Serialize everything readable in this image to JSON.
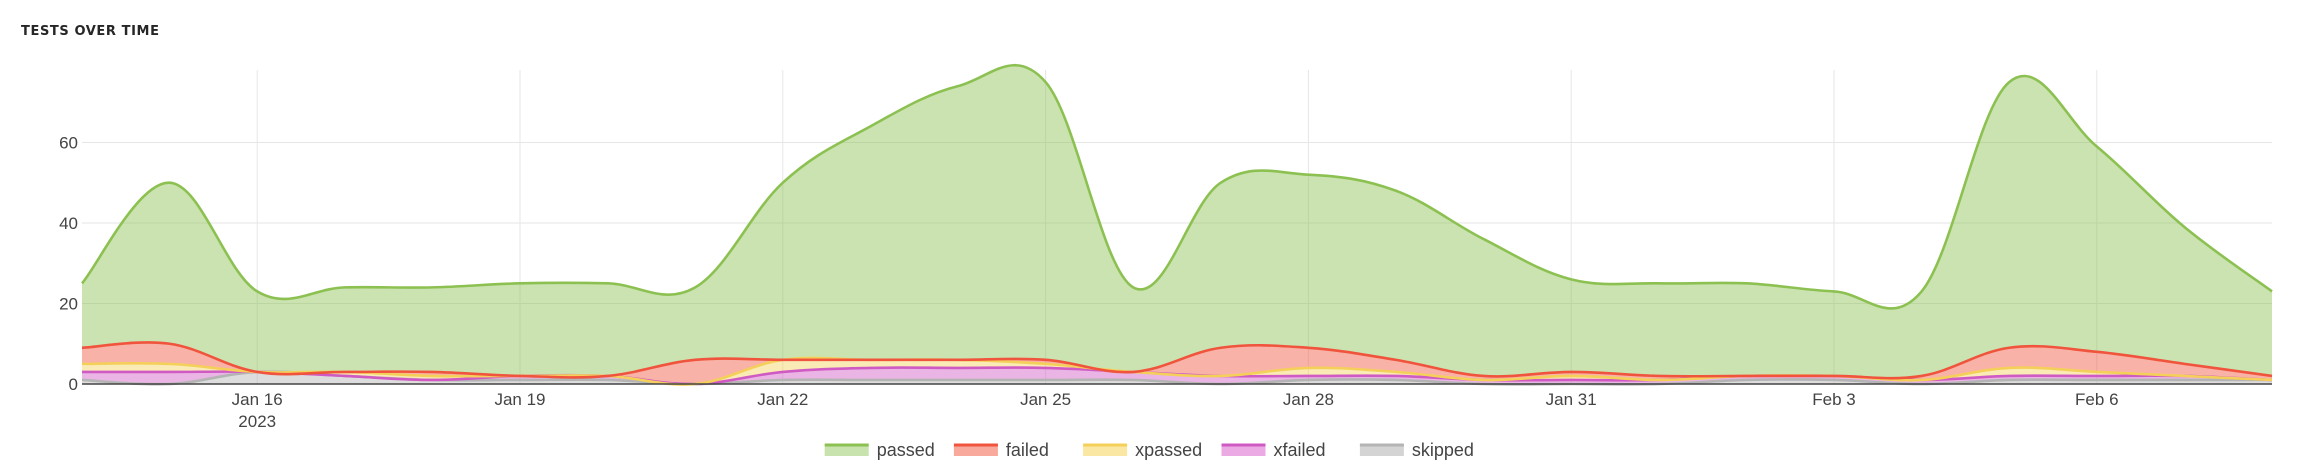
{
  "title": "TESTS OVER TIME",
  "chart_data": {
    "type": "area",
    "stacked": true,
    "x_dates": [
      "2023-01-14",
      "2023-01-15",
      "2023-01-16",
      "2023-01-17",
      "2023-01-18",
      "2023-01-19",
      "2023-01-20",
      "2023-01-21",
      "2023-01-22",
      "2023-01-23",
      "2023-01-24",
      "2023-01-25",
      "2023-01-26",
      "2023-01-27",
      "2023-01-28",
      "2023-01-29",
      "2023-01-30",
      "2023-01-31",
      "2023-02-01",
      "2023-02-02",
      "2023-02-03",
      "2023-02-04",
      "2023-02-05",
      "2023-02-06",
      "2023-02-07",
      "2023-02-08"
    ],
    "x_ticks": [
      "Jan 16",
      "Jan 19",
      "Jan 22",
      "Jan 25",
      "Jan 28",
      "Jan 31",
      "Feb 3",
      "Feb 6"
    ],
    "x_tick_year": "2023",
    "y_ticks": [
      "0",
      "20",
      "40",
      "60"
    ],
    "ylim": [
      0,
      78
    ],
    "grid": true,
    "legend_position": "bottom-center",
    "series": [
      {
        "name": "skipped",
        "color": "#b4b4b4",
        "values": [
          1,
          0,
          3,
          2,
          1,
          1,
          1,
          0,
          1,
          1,
          1,
          1,
          1,
          0,
          1,
          1,
          0,
          0,
          0,
          1,
          1,
          0,
          1,
          1,
          1,
          1
        ]
      },
      {
        "name": "xfailed",
        "color": "#d05ac4",
        "values": [
          2,
          3,
          0,
          0,
          0,
          1,
          1,
          0,
          2,
          3,
          3,
          3,
          2,
          2,
          1,
          1,
          1,
          1,
          1,
          1,
          1,
          1,
          1,
          1,
          1,
          0
        ]
      },
      {
        "name": "xpassed",
        "color": "#f4d05a",
        "values": [
          2,
          2,
          0,
          1,
          1,
          0,
          0,
          0,
          3,
          2,
          2,
          1,
          0,
          0,
          2,
          1,
          0,
          1,
          0,
          0,
          0,
          0,
          2,
          1,
          0,
          0
        ]
      },
      {
        "name": "failed",
        "color": "#f0543c",
        "values": [
          4,
          5,
          0,
          0,
          1,
          0,
          0,
          6,
          0,
          0,
          0,
          1,
          0,
          7,
          5,
          3,
          1,
          1,
          1,
          0,
          0,
          1,
          5,
          5,
          3,
          1
        ]
      },
      {
        "name": "passed",
        "color": "#8cc152",
        "values": [
          16,
          40,
          20,
          21,
          21,
          23,
          23,
          18,
          44,
          58,
          68,
          69,
          21,
          41,
          43,
          42,
          34,
          23,
          23,
          23,
          21,
          21,
          66,
          51,
          34,
          21
        ]
      }
    ]
  },
  "legend": [
    {
      "label": "passed",
      "fill": "#c8e3ae",
      "stroke": "#8cc152"
    },
    {
      "label": "failed",
      "fill": "#f9a99b",
      "stroke": "#f0543c"
    },
    {
      "label": "xpassed",
      "fill": "#fae7a4",
      "stroke": "#f4d05a"
    },
    {
      "label": "xfailed",
      "fill": "#ebaae3",
      "stroke": "#d05ac4"
    },
    {
      "label": "skipped",
      "fill": "#d4d4d4",
      "stroke": "#b4b4b4"
    }
  ]
}
